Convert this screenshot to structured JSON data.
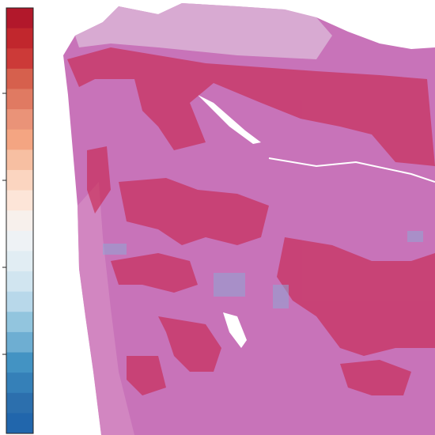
{
  "colorbar": {
    "colors": [
      "#b2182b",
      "#c1272d",
      "#cc3a38",
      "#d6604d",
      "#e07a62",
      "#ea9378",
      "#f4a582",
      "#f7bfa2",
      "#fbd5c0",
      "#fde5d8",
      "#f7f0ec",
      "#eef2f5",
      "#e1edf3",
      "#d1e5f0",
      "#b8d8ea",
      "#92c5de",
      "#6eaed2",
      "#4393c3",
      "#3580b8",
      "#2c6fad",
      "#2166ac"
    ]
  }
}
